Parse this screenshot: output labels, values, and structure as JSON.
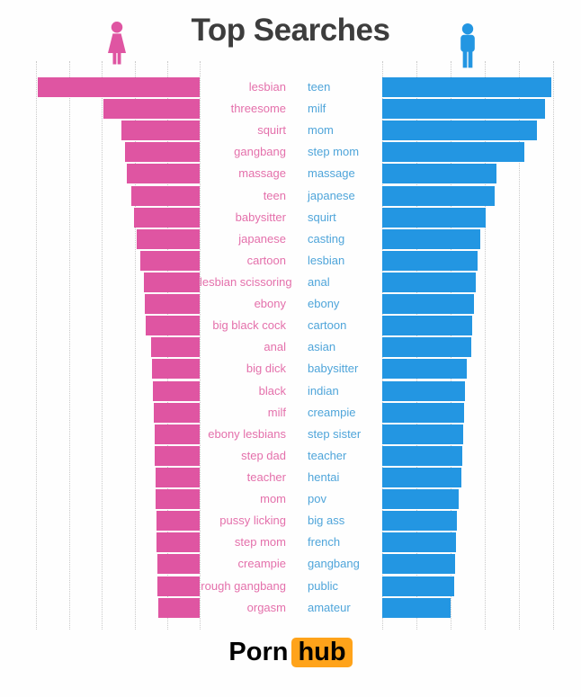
{
  "title": "Top Searches",
  "icons": {
    "woman": "woman-icon",
    "man": "man-icon"
  },
  "colors": {
    "female_bar": "#df55a2",
    "male_bar": "#2396e2",
    "female_label": "#e470ab",
    "male_label": "#4fa5da",
    "title": "#3d3d3d",
    "gridline": "#c9c9c9",
    "logo_orange": "#ffa31a",
    "logo_text": "#000000"
  },
  "logo": {
    "porn": "Porn",
    "hub": "hub"
  },
  "chart_data": {
    "type": "bar",
    "orientation": "horizontal-mirrored",
    "title": "Top Searches",
    "grid": "dotted-vertical",
    "legend": "pictogram icons: woman (left, pink), man (right, blue)",
    "value_unit": "relative bar length in px at 646px render width (no numeric axis shown)",
    "series": [
      {
        "name": "female",
        "color": "#df55a2",
        "label_color": "#e470ab",
        "categories": [
          "lesbian",
          "threesome",
          "squirt",
          "gangbang",
          "massage",
          "teen",
          "babysitter",
          "japanese",
          "cartoon",
          "lesbian scissoring",
          "ebony",
          "big black cock",
          "anal",
          "big dick",
          "black",
          "milf",
          "ebony lesbians",
          "step dad",
          "teacher",
          "mom",
          "pussy licking",
          "step mom",
          "creampie",
          "rough gangbang",
          "orgasm"
        ],
        "values": [
          180,
          107,
          87,
          83,
          81,
          76,
          73,
          70,
          66,
          62,
          61,
          60,
          54,
          53,
          52,
          51,
          50.5,
          50,
          49.5,
          49,
          48.5,
          48,
          47.5,
          47,
          46
        ]
      },
      {
        "name": "male",
        "color": "#2396e2",
        "label_color": "#4fa5da",
        "categories": [
          "teen",
          "milf",
          "mom",
          "step mom",
          "massage",
          "japanese",
          "squirt",
          "casting",
          "lesbian",
          "anal",
          "ebony",
          "cartoon",
          "asian",
          "babysitter",
          "indian",
          "creampie",
          "step sister",
          "teacher",
          "hentai",
          "pov",
          "big ass",
          "french",
          "gangbang",
          "public",
          "amateur"
        ],
        "values": [
          188,
          181,
          172,
          158,
          127,
          125,
          115,
          109,
          106,
          104,
          102,
          100,
          99,
          94,
          92,
          91,
          90,
          89,
          88,
          85,
          83,
          82,
          81,
          80,
          76
        ]
      }
    ]
  }
}
